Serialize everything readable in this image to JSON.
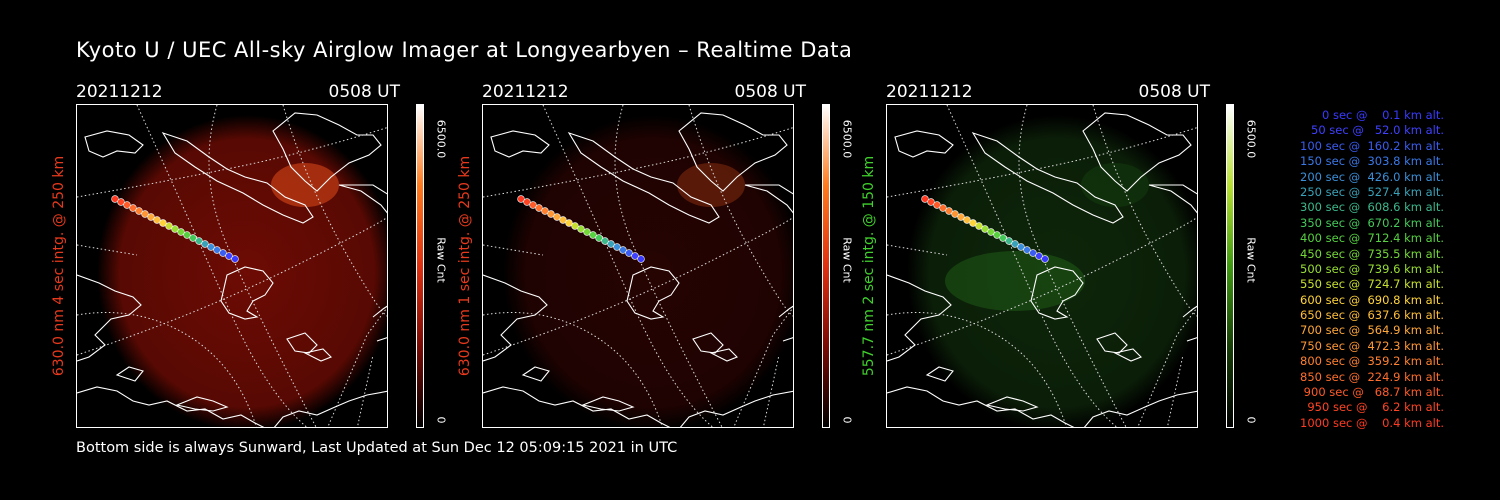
{
  "title": "Kyoto U / UEC All-sky Airglow Imager at Longyearbyen – Realtime Data",
  "footer": "Bottom side is always Sunward, Last Updated at Sun Dec 12 05:09:15 2021 in UTC",
  "colors": {
    "red630": "#e23a1a",
    "green557": "#3fd12c",
    "background": "#000000"
  },
  "panels": [
    {
      "date": "20211212",
      "time": "0508 UT",
      "side_label": "630.0 nm 4 sec intg. @ 250 km",
      "side_color": "#e8391c",
      "cbar_max": "6500.0",
      "cbar_min": "0",
      "cbar_unit": "Raw Cnt",
      "tone": "#b01206",
      "glow": 0.62,
      "cbar_colors": [
        "#ffffff",
        "#ff7a1c",
        "#e03010",
        "#7a0a04",
        "#000000"
      ]
    },
    {
      "date": "20211212",
      "time": "0508 UT",
      "side_label": "630.0 nm 1 sec intg. @ 250 km",
      "side_color": "#e8391c",
      "cbar_max": "6500.0",
      "cbar_min": "0",
      "cbar_unit": "Raw Cnt",
      "tone": "#2a0402",
      "glow": 0.9,
      "cbar_colors": [
        "#ffffff",
        "#ff7a1c",
        "#e03010",
        "#7a0a04",
        "#000000"
      ]
    },
    {
      "date": "20211212",
      "time": "0508 UT",
      "side_label": "557.7 nm 2 sec intg. @ 150 km",
      "side_color": "#3fd12c",
      "cbar_max": "6500.0",
      "cbar_min": "0",
      "cbar_unit": "Raw Cnt",
      "tone": "#0f2a0b",
      "glow": 0.9,
      "cbar_colors": [
        "#ffffff",
        "#b8e030",
        "#3f9a10",
        "#173f06",
        "#000000"
      ]
    }
  ],
  "legend": [
    {
      "label": "   0 sec @    0.1 km alt.",
      "color": "#3a3aff"
    },
    {
      "label": "  50 sec @   52.0 km alt.",
      "color": "#4040ff"
    },
    {
      "label": " 100 sec @  160.2 km alt.",
      "color": "#3a5cf0"
    },
    {
      "label": " 150 sec @  303.8 km alt.",
      "color": "#3a78e6"
    },
    {
      "label": " 200 sec @  426.0 km alt.",
      "color": "#3b8fd8"
    },
    {
      "label": " 250 sec @  527.4 km alt.",
      "color": "#3aa2b8"
    },
    {
      "label": " 300 sec @  608.6 km alt.",
      "color": "#3cb88c"
    },
    {
      "label": " 350 sec @  670.2 km alt.",
      "color": "#44c85a"
    },
    {
      "label": " 400 sec @  712.4 km alt.",
      "color": "#56d040"
    },
    {
      "label": " 450 sec @  735.5 km alt.",
      "color": "#74d838"
    },
    {
      "label": " 500 sec @  739.6 km alt.",
      "color": "#98de34"
    },
    {
      "label": " 550 sec @  724.7 km alt.",
      "color": "#c8e030"
    },
    {
      "label": " 600 sec @  690.8 km alt.",
      "color": "#ffd43a"
    },
    {
      "label": " 650 sec @  637.6 km alt.",
      "color": "#ffbe3a"
    },
    {
      "label": " 700 sec @  564.9 km alt.",
      "color": "#ffa83a"
    },
    {
      "label": " 750 sec @  472.3 km alt.",
      "color": "#ff9636"
    },
    {
      "label": " 800 sec @  359.2 km alt.",
      "color": "#ff8030"
    },
    {
      "label": " 850 sec @  224.9 km alt.",
      "color": "#ff6e2c"
    },
    {
      "label": " 900 sec @   68.7 km alt.",
      "color": "#ff5a28"
    },
    {
      "label": " 950 sec @    6.2 km alt.",
      "color": "#ff4424"
    },
    {
      "label": "1000 sec @    0.4 km alt.",
      "color": "#ff3a22"
    }
  ]
}
